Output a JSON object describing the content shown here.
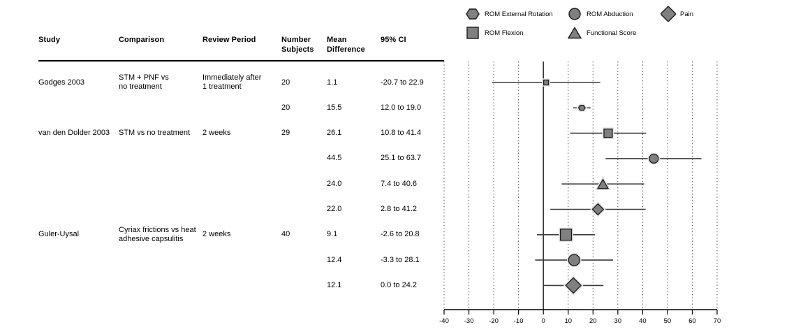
{
  "table": {
    "headers": [
      {
        "key": "study",
        "label": "Study"
      },
      {
        "key": "comparison",
        "label": "Comparison"
      },
      {
        "key": "period",
        "label": "Review Period"
      },
      {
        "key": "subjects",
        "label": "Number\nSubjects"
      },
      {
        "key": "mean",
        "label": "Mean\nDifference"
      },
      {
        "key": "ci",
        "label": "95% CI"
      }
    ],
    "rows": [
      {
        "study": "Godges 2003",
        "comparison": "STM + PNF vs\nno treatment",
        "period": "Immediately after\n1 treatment",
        "subjects": "20",
        "mean": "1.1",
        "ci_text": "-20.7 to 22.9"
      },
      {
        "study": "",
        "comparison": "",
        "period": "",
        "subjects": "20",
        "mean": "15.5",
        "ci_text": "12.0 to 19.0"
      },
      {
        "study": "van den Dolder 2003",
        "comparison": "STM vs no treatment",
        "period": "2 weeks",
        "subjects": "29",
        "mean": "26.1",
        "ci_text": "10.8 to 41.4"
      },
      {
        "study": "",
        "comparison": "",
        "period": "",
        "subjects": "",
        "mean": "44.5",
        "ci_text": "25.1 to 63.7"
      },
      {
        "study": "",
        "comparison": "",
        "period": "",
        "subjects": "",
        "mean": "24.0",
        "ci_text": "7.4 to 40.6"
      },
      {
        "study": "",
        "comparison": "",
        "period": "",
        "subjects": "",
        "mean": "22.0",
        "ci_text": "2.8 to 41.2"
      },
      {
        "study": "Guler-Uysal",
        "comparison": "Cyriax frictions vs heat\nadhesive capsulitis",
        "period": "2 weeks",
        "subjects": "40",
        "mean": "9.1",
        "ci_text": "-2.6 to 20.8"
      },
      {
        "study": "",
        "comparison": "",
        "period": "",
        "subjects": "",
        "mean": "12.4",
        "ci_text": "-3.3 to 28.1"
      },
      {
        "study": "",
        "comparison": "",
        "period": "",
        "subjects": "",
        "mean": "12.1",
        "ci_text": "0.0 to 24.2"
      }
    ]
  },
  "legend": {
    "items": [
      {
        "label": "ROM External Rotation",
        "marker": "hexagon"
      },
      {
        "label": "ROM Abduction",
        "marker": "circle"
      },
      {
        "label": "Pain",
        "marker": "diamond"
      },
      {
        "label": "ROM Flexion",
        "marker": "square"
      },
      {
        "label": "Functional Score",
        "marker": "triangle"
      }
    ]
  },
  "chart_data": {
    "type": "scatter",
    "subtype": "forest-plot",
    "title": "",
    "xlabel": "",
    "ylabel": "",
    "x_axis": {
      "min": -40,
      "max": 70,
      "ticks": [
        -40,
        -30,
        -20,
        -10,
        0,
        10,
        20,
        30,
        40,
        50,
        60,
        70
      ],
      "zero_reference_line": true,
      "gridlines": "dotted-vertical"
    },
    "legend_position": "top-right",
    "points": [
      {
        "row": 1,
        "study": "Godges 2003",
        "outcome": "ROM Flexion",
        "marker": "square",
        "size": "small",
        "n": 20,
        "mean": 1.1,
        "ci": [
          -20.7,
          22.9
        ]
      },
      {
        "row": 2,
        "study": "Godges 2003",
        "outcome": "ROM External Rotation",
        "marker": "hexagon",
        "size": "small",
        "n": 20,
        "mean": 15.5,
        "ci": [
          12.0,
          19.0
        ]
      },
      {
        "row": 3,
        "study": "van den Dolder 2003",
        "outcome": "ROM Flexion",
        "marker": "square",
        "size": "medium",
        "n": 29,
        "mean": 26.1,
        "ci": [
          10.8,
          41.4
        ]
      },
      {
        "row": 4,
        "study": "van den Dolder 2003",
        "outcome": "ROM Abduction",
        "marker": "circle",
        "size": "medium",
        "n": 29,
        "mean": 44.5,
        "ci": [
          25.1,
          63.7
        ]
      },
      {
        "row": 5,
        "study": "van den Dolder 2003",
        "outcome": "Functional Score",
        "marker": "triangle",
        "size": "medium",
        "n": 29,
        "mean": 24.0,
        "ci": [
          7.4,
          40.6
        ]
      },
      {
        "row": 6,
        "study": "van den Dolder 2003",
        "outcome": "Pain",
        "marker": "diamond",
        "size": "medium",
        "n": 29,
        "mean": 22.0,
        "ci": [
          2.8,
          41.2
        ]
      },
      {
        "row": 7,
        "study": "Guler-Uysal",
        "outcome": "ROM Flexion",
        "marker": "square",
        "size": "large",
        "n": 40,
        "mean": 9.1,
        "ci": [
          -2.6,
          20.8
        ]
      },
      {
        "row": 8,
        "study": "Guler-Uysal",
        "outcome": "ROM Abduction",
        "marker": "circle",
        "size": "large",
        "n": 40,
        "mean": 12.4,
        "ci": [
          -3.3,
          28.1
        ]
      },
      {
        "row": 9,
        "study": "Guler-Uysal",
        "outcome": "Pain",
        "marker": "diamond",
        "size": "large",
        "n": 40,
        "mean": 12.1,
        "ci": [
          0.0,
          24.2
        ]
      }
    ],
    "colors": {
      "marker_fill": "#808080",
      "marker_stroke": "#1a1a1a",
      "marker_halo": "#e6e6e6",
      "ci_line": "#3d3d3d",
      "grid_line": "#3a3a3a",
      "axis_line": "#000000",
      "text": "#000000"
    }
  }
}
